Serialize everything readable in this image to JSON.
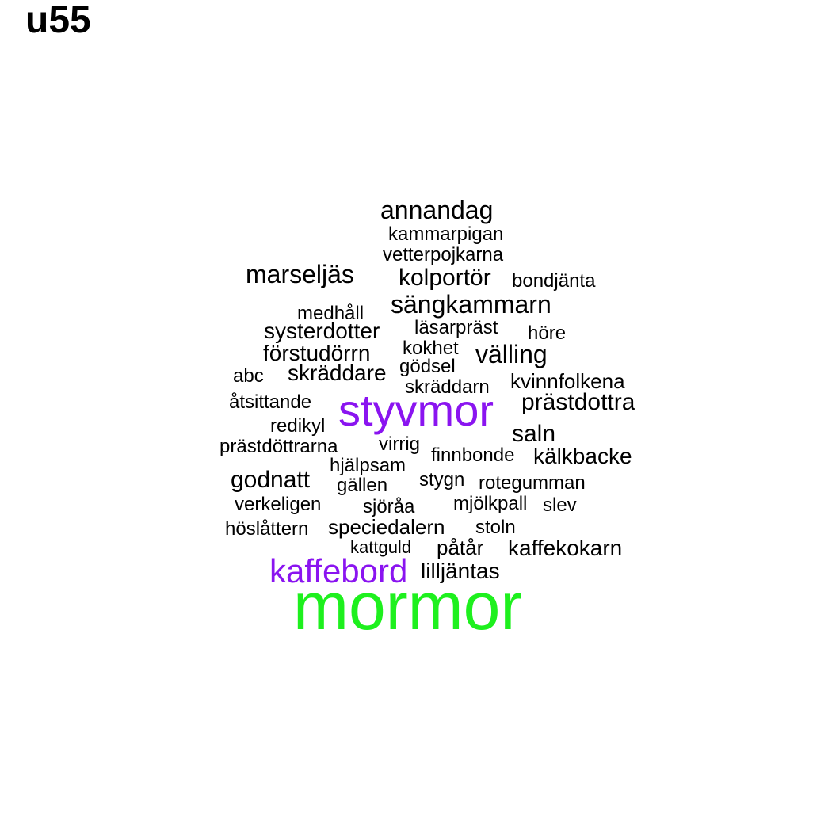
{
  "title": "u55",
  "colors": {
    "default": "#000000",
    "purple": "#8a14f0",
    "green": "#1ef01e"
  },
  "words": [
    {
      "text": "annandag",
      "color": "default"
    },
    {
      "text": "kammarpigan",
      "color": "default"
    },
    {
      "text": "vetterpojkarna",
      "color": "default"
    },
    {
      "text": "marseljäs",
      "color": "default"
    },
    {
      "text": "kolportör",
      "color": "default"
    },
    {
      "text": "bondjänta",
      "color": "default"
    },
    {
      "text": "sängkammarn",
      "color": "default"
    },
    {
      "text": "medhåll",
      "color": "default"
    },
    {
      "text": "systerdotter",
      "color": "default"
    },
    {
      "text": "läsarpräst",
      "color": "default"
    },
    {
      "text": "höre",
      "color": "default"
    },
    {
      "text": "förstudörrn",
      "color": "default"
    },
    {
      "text": "kokhet",
      "color": "default"
    },
    {
      "text": "välling",
      "color": "default"
    },
    {
      "text": "gödsel",
      "color": "default"
    },
    {
      "text": "abc",
      "color": "default"
    },
    {
      "text": "skräddare",
      "color": "default"
    },
    {
      "text": "kvinnfolkena",
      "color": "default"
    },
    {
      "text": "skräddarn",
      "color": "default"
    },
    {
      "text": "åtsittande",
      "color": "default"
    },
    {
      "text": "styvmor",
      "color": "purple"
    },
    {
      "text": "prästdottra",
      "color": "default"
    },
    {
      "text": "redikyl",
      "color": "default"
    },
    {
      "text": "saln",
      "color": "default"
    },
    {
      "text": "prästdöttrarna",
      "color": "default"
    },
    {
      "text": "virrig",
      "color": "default"
    },
    {
      "text": "finnbonde",
      "color": "default"
    },
    {
      "text": "kälkbacke",
      "color": "default"
    },
    {
      "text": "hjälpsam",
      "color": "default"
    },
    {
      "text": "godnatt",
      "color": "default"
    },
    {
      "text": "gällen",
      "color": "default"
    },
    {
      "text": "stygn",
      "color": "default"
    },
    {
      "text": "rotegumman",
      "color": "default"
    },
    {
      "text": "verkeligen",
      "color": "default"
    },
    {
      "text": "sjöråa",
      "color": "default"
    },
    {
      "text": "mjölkpall",
      "color": "default"
    },
    {
      "text": "slev",
      "color": "default"
    },
    {
      "text": "höslåttern",
      "color": "default"
    },
    {
      "text": "speciedalern",
      "color": "default"
    },
    {
      "text": "stoln",
      "color": "default"
    },
    {
      "text": "kattguld",
      "color": "default"
    },
    {
      "text": "påtår",
      "color": "default"
    },
    {
      "text": "kaffekokarn",
      "color": "default"
    },
    {
      "text": "kaffebord",
      "color": "purple"
    },
    {
      "text": "lilljäntas",
      "color": "default"
    },
    {
      "text": "mormor",
      "color": "green"
    }
  ]
}
